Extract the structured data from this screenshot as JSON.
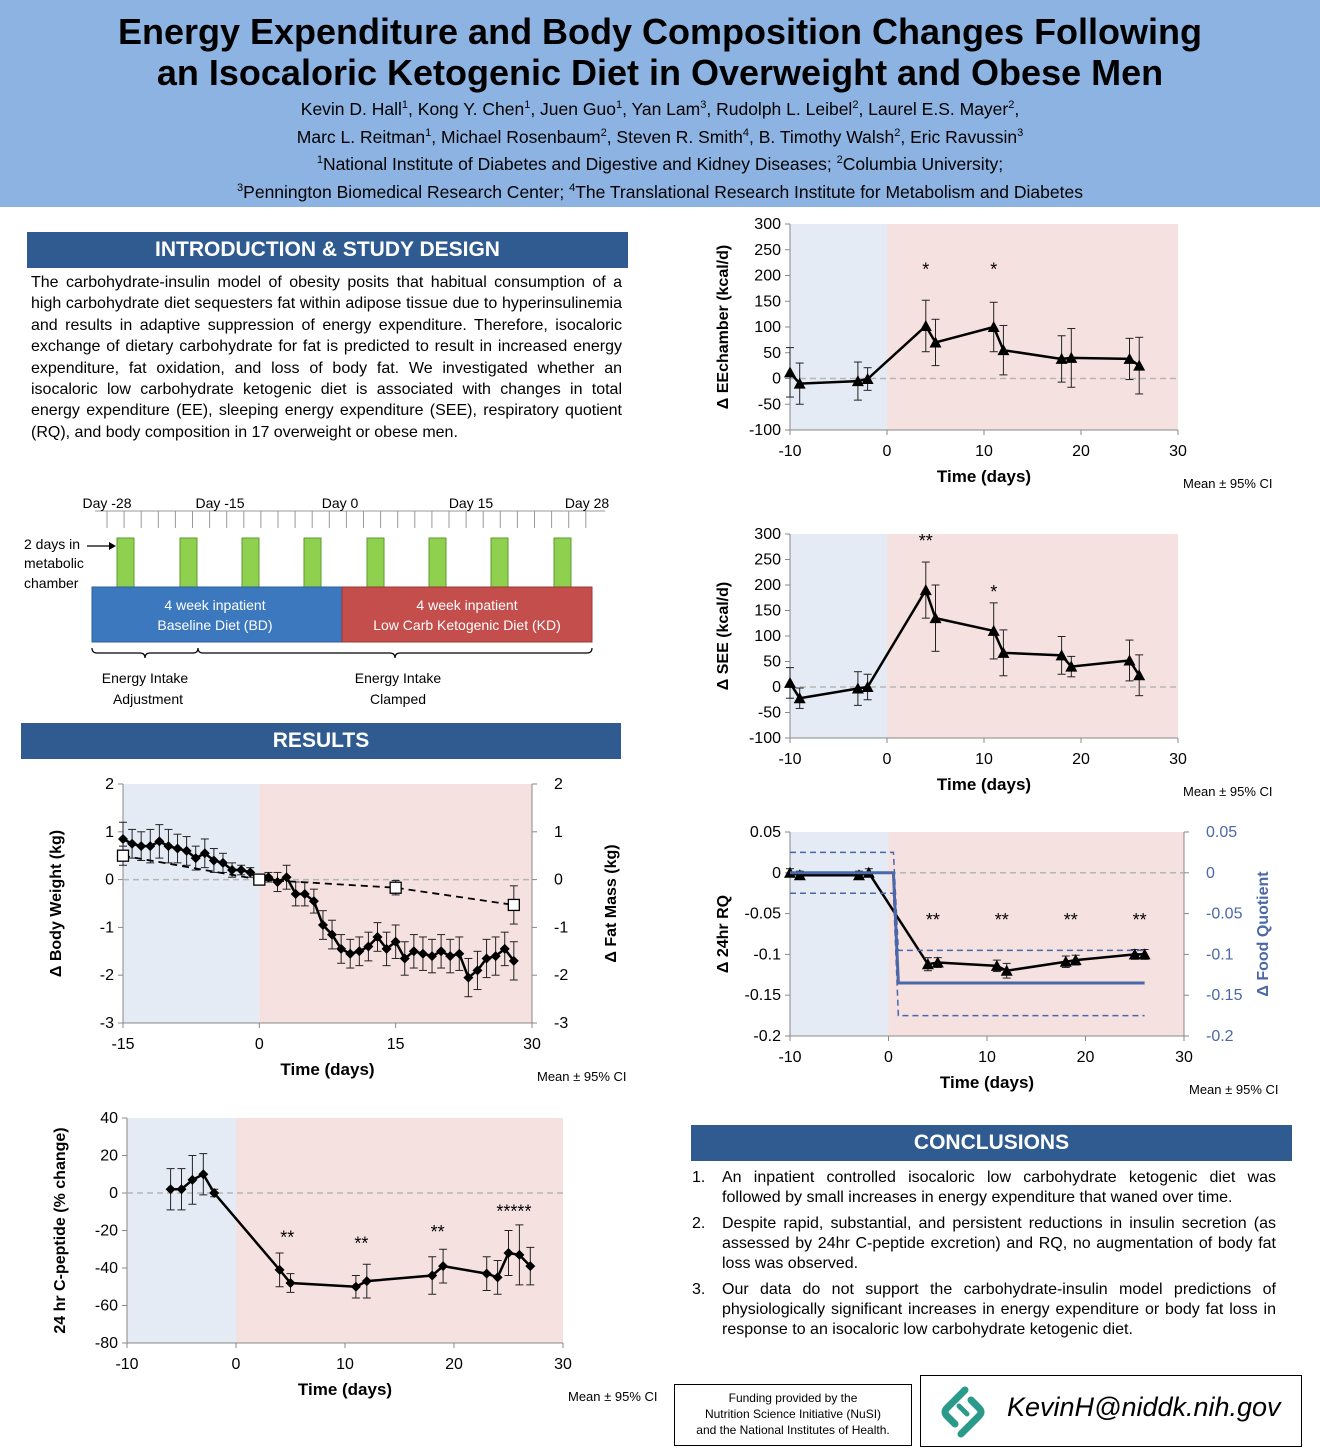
{
  "header": {
    "title_line1": "Energy Expenditure and Body Composition Changes Following",
    "title_line2": "an Isocaloric Ketogenic Diet in Overweight and Obese Men",
    "authors": [
      {
        "name": "Kevin D. Hall",
        "sup": "1"
      },
      {
        "name": "Kong Y. Chen",
        "sup": "1"
      },
      {
        "name": "Juen Guo",
        "sup": "1"
      },
      {
        "name": "Yan Lam",
        "sup": "3"
      },
      {
        "name": "Rudolph L. Leibel",
        "sup": "2"
      },
      {
        "name": "Laurel E.S. Mayer",
        "sup": "2"
      },
      {
        "name": "Marc L. Reitman",
        "sup": "1"
      },
      {
        "name": "Michael Rosenbaum",
        "sup": "2"
      },
      {
        "name": "Steven R. Smith",
        "sup": "4"
      },
      {
        "name": "B. Timothy Walsh",
        "sup": "2"
      },
      {
        "name": "Eric Ravussin",
        "sup": "3"
      }
    ],
    "affiliations": [
      {
        "sup": "1",
        "name": "National Institute of Diabetes and Digestive and Kidney Diseases;"
      },
      {
        "sup": "2",
        "name": "Columbia University;"
      },
      {
        "sup": "3",
        "name": "Pennington Biomedical Research Center;"
      },
      {
        "sup": "4",
        "name": "The Translational Research Institute for Metabolism and Diabetes"
      }
    ]
  },
  "intro": {
    "heading": "INTRODUCTION & STUDY DESIGN",
    "text": "The carbohydrate-insulin model of obesity posits that habitual consumption of a high carbohydrate diet sequesters fat within adipose tissue due to hyperinsulinemia and results in adaptive suppression of energy expenditure. Therefore, isocaloric exchange of dietary carbohydrate for fat is predicted to result in increased energy expenditure, fat oxidation, and loss of body fat. We investigated whether an isocaloric low carbohydrate ketogenic diet is associated with changes in total energy expenditure (EE), sleeping energy expenditure (SEE), respiratory quotient (RQ), and body composition in 17 overweight or obese men."
  },
  "design": {
    "day_labels": [
      "Day -28",
      "Day -15",
      "Day 0",
      "Day 15",
      "Day 28"
    ],
    "chamber_note": [
      "2 days in",
      "metabolic",
      "chamber"
    ],
    "phase1": [
      "4 week inpatient",
      "Baseline Diet (BD)"
    ],
    "phase2": [
      "4 week inpatient",
      "Low Carb Ketogenic Diet (KD)"
    ],
    "bracket1": [
      "Energy Intake",
      "Adjustment"
    ],
    "bracket2": [
      "Energy Intake",
      "Clamped"
    ]
  },
  "results_heading": "RESULTS",
  "conclusions": {
    "heading": "CONCLUSIONS",
    "items": [
      {
        "num": "1.",
        "text": "An inpatient controlled isocaloric low carbohydrate ketogenic diet  was followed by small increases in energy expenditure that waned over time."
      },
      {
        "num": "2.",
        "text": "Despite rapid, substantial, and persistent reductions in insulin secretion (as assessed by 24hr C-peptide excretion) and RQ, no augmentation of body fat loss was observed."
      },
      {
        "num": "3.",
        "text": "Our data do not support the carbohydrate-insulin model predictions of physiologically significant increases in energy expenditure or body fat loss in response to an isocaloric low carbohydrate ketogenic diet."
      }
    ]
  },
  "funding": [
    "Funding provided by  the",
    "Nutrition Science Initiative (NuSI)",
    "and  the National Institutes of Health."
  ],
  "contact_email": "KevinH@niddk.nih.gov",
  "colors": {
    "header_bg": "#8db3e2",
    "section_bar": "#2f5b91",
    "baseline_shade": "#e5ebf5",
    "keto_shade": "#f6e1e1",
    "baseline_box": "#3b78be",
    "keto_box": "#c34e4c",
    "chamber_green": "#8fd14f",
    "food_quotient": "#4a67a8"
  },
  "chart_data": [
    {
      "id": "ee",
      "type": "line",
      "xlabel": "Time (days)",
      "ylabel": "Δ EEchamber (kcal/d)",
      "xlim": [
        -10,
        30
      ],
      "ylim": [
        -100,
        300
      ],
      "xticks": [
        -10,
        0,
        10,
        20,
        30
      ],
      "yticks": [
        -100,
        -50,
        0,
        50,
        100,
        150,
        200,
        250,
        300
      ],
      "note": "Mean ± 95% CI",
      "series": [
        {
          "name": "EE",
          "marker": "triangle",
          "points": [
            [
              -10,
              12
            ],
            [
              -9,
              -10
            ],
            [
              -3,
              -5
            ],
            [
              -2,
              -1
            ],
            [
              4,
              102
            ],
            [
              5,
              70
            ],
            [
              11,
              100
            ],
            [
              12,
              55
            ],
            [
              18,
              38
            ],
            [
              19,
              40
            ],
            [
              25,
              38
            ],
            [
              26,
              25
            ]
          ],
          "err": [
            48,
            40,
            37,
            22,
            50,
            45,
            48,
            48,
            45,
            57,
            40,
            55
          ]
        }
      ],
      "annotations": [
        {
          "x": 4,
          "y": 200,
          "text": "*"
        },
        {
          "x": 11,
          "y": 200,
          "text": "*"
        }
      ]
    },
    {
      "id": "see",
      "type": "line",
      "xlabel": "Time (days)",
      "ylabel": "Δ SEE  (kcal/d)",
      "xlim": [
        -10,
        30
      ],
      "ylim": [
        -100,
        300
      ],
      "xticks": [
        -10,
        0,
        10,
        20,
        30
      ],
      "yticks": [
        -100,
        -50,
        0,
        50,
        100,
        150,
        200,
        250,
        300
      ],
      "note": "Mean ± 95% CI",
      "series": [
        {
          "name": "SEE",
          "marker": "triangle",
          "points": [
            [
              -10,
              8
            ],
            [
              -9,
              -22
            ],
            [
              -3,
              -3
            ],
            [
              -2,
              0
            ],
            [
              4,
              190
            ],
            [
              5,
              135
            ],
            [
              11,
              110
            ],
            [
              12,
              67
            ],
            [
              18,
              62
            ],
            [
              19,
              40
            ],
            [
              25,
              52
            ],
            [
              26,
              23
            ]
          ],
          "err": [
            30,
            20,
            33,
            25,
            55,
            65,
            55,
            45,
            37,
            20,
            40,
            40
          ]
        }
      ],
      "annotations": [
        {
          "x": 4,
          "y": 275,
          "text": "**"
        },
        {
          "x": 11,
          "y": 175,
          "text": "*"
        }
      ]
    },
    {
      "id": "rq",
      "type": "line",
      "xlabel": "Time (days)",
      "ylabel": "Δ 24hr RQ",
      "ylabel_right": "Δ Food Quotient",
      "xlim": [
        -10,
        30
      ],
      "ylim": [
        -0.2,
        0.05
      ],
      "xticks": [
        -10,
        0,
        10,
        20,
        30
      ],
      "yticks": [
        -0.2,
        -0.15,
        -0.1,
        -0.05,
        0,
        0.05
      ],
      "note": "Mean ± 95% CI",
      "series": [
        {
          "name": "24hr RQ",
          "marker": "triangle",
          "points": [
            [
              -10,
              0
            ],
            [
              -9,
              -0.003
            ],
            [
              -3,
              -0.003
            ],
            [
              -2,
              0
            ],
            [
              4,
              -0.112
            ],
            [
              5,
              -0.11
            ],
            [
              11,
              -0.114
            ],
            [
              12,
              -0.12
            ],
            [
              18,
              -0.109
            ],
            [
              19,
              -0.107
            ],
            [
              25,
              -0.1
            ],
            [
              26,
              -0.1
            ]
          ],
          "err": [
            0.005,
            0.005,
            0.005,
            0.005,
            0.008,
            0.006,
            0.007,
            0.009,
            0.007,
            0.006,
            0.006,
            0.006
          ]
        },
        {
          "name": "Food Quotient",
          "marker": "none",
          "color": "#4a67a8",
          "points": [
            [
              -10,
              0
            ],
            [
              0.5,
              0
            ],
            [
              1,
              -0.135
            ],
            [
              26,
              -0.135
            ]
          ],
          "upper": [
            [
              -10,
              0.025
            ],
            [
              0.5,
              0.025
            ],
            [
              1,
              -0.095
            ],
            [
              26,
              -0.095
            ]
          ],
          "lower": [
            [
              -10,
              -0.025
            ],
            [
              0.5,
              -0.025
            ],
            [
              1,
              -0.175
            ],
            [
              26,
              -0.175
            ]
          ]
        }
      ],
      "annotations": [
        {
          "x": 4.5,
          "y": -0.065,
          "text": "**"
        },
        {
          "x": 11.5,
          "y": -0.065,
          "text": "**"
        },
        {
          "x": 18.5,
          "y": -0.065,
          "text": "**"
        },
        {
          "x": 25.5,
          "y": -0.065,
          "text": "**"
        }
      ]
    },
    {
      "id": "weight",
      "type": "line",
      "xlabel": "Time (days)",
      "ylabel": "Δ Body Weight (kg)",
      "ylabel_right": "Δ Fat Mass (kg)",
      "xlim": [
        -15,
        30
      ],
      "ylim": [
        -3,
        2
      ],
      "xticks": [
        -15,
        0,
        15,
        30
      ],
      "yticks": [
        -3,
        -2,
        -1,
        0,
        1,
        2
      ],
      "note": "Mean ± 95% CI",
      "series": [
        {
          "name": "Body Weight",
          "marker": "diamond",
          "points": [
            [
              -15,
              0.85
            ],
            [
              -14,
              0.75
            ],
            [
              -13,
              0.7
            ],
            [
              -12,
              0.7
            ],
            [
              -11,
              0.8
            ],
            [
              -10,
              0.7
            ],
            [
              -9,
              0.65
            ],
            [
              -8,
              0.6
            ],
            [
              -7,
              0.45
            ],
            [
              -6,
              0.55
            ],
            [
              -5,
              0.4
            ],
            [
              -4,
              0.35
            ],
            [
              -3,
              0.2
            ],
            [
              -2,
              0.2
            ],
            [
              -1,
              0.15
            ],
            [
              0,
              0.0
            ],
            [
              1,
              0.05
            ],
            [
              2,
              -0.05
            ],
            [
              3,
              0.05
            ],
            [
              4,
              -0.3
            ],
            [
              5,
              -0.3
            ],
            [
              6,
              -0.45
            ],
            [
              7,
              -0.95
            ],
            [
              8,
              -1.15
            ],
            [
              9,
              -1.45
            ],
            [
              10,
              -1.55
            ],
            [
              11,
              -1.5
            ],
            [
              12,
              -1.4
            ],
            [
              13,
              -1.2
            ],
            [
              14,
              -1.45
            ],
            [
              15,
              -1.3
            ],
            [
              16,
              -1.65
            ],
            [
              17,
              -1.5
            ],
            [
              18,
              -1.55
            ],
            [
              19,
              -1.6
            ],
            [
              20,
              -1.5
            ],
            [
              21,
              -1.6
            ],
            [
              22,
              -1.55
            ],
            [
              23,
              -2.05
            ],
            [
              24,
              -1.9
            ],
            [
              25,
              -1.65
            ],
            [
              26,
              -1.6
            ],
            [
              27,
              -1.45
            ],
            [
              28,
              -1.7
            ]
          ],
          "err": [
            0.35,
            0.3,
            0.3,
            0.35,
            0.35,
            0.35,
            0.3,
            0.3,
            0.25,
            0.3,
            0.25,
            0.2,
            0.15,
            0.1,
            0.1,
            0.05,
            0.1,
            0.2,
            0.25,
            0.25,
            0.25,
            0.25,
            0.3,
            0.3,
            0.3,
            0.3,
            0.3,
            0.3,
            0.3,
            0.35,
            0.35,
            0.35,
            0.35,
            0.35,
            0.35,
            0.35,
            0.35,
            0.35,
            0.4,
            0.4,
            0.4,
            0.4,
            0.35,
            0.4
          ]
        },
        {
          "name": "Fat Mass",
          "marker": "open-square",
          "dashed": true,
          "points": [
            [
              -15,
              0.5
            ],
            [
              0,
              0.0
            ],
            [
              15,
              -0.17
            ],
            [
              28,
              -0.53
            ]
          ],
          "err": [
            0.2,
            0.05,
            0.15,
            0.4
          ]
        }
      ]
    },
    {
      "id": "cpeptide",
      "type": "line",
      "xlabel": "Time (days)",
      "ylabel": "24 hr C-peptide (% change)",
      "xlim": [
        -10,
        30
      ],
      "ylim": [
        -80,
        40
      ],
      "xticks": [
        -10,
        0,
        10,
        20,
        30
      ],
      "yticks": [
        -80,
        -60,
        -40,
        -20,
        0,
        20,
        40
      ],
      "note": "Mean ± 95% CI",
      "series": [
        {
          "name": "C-peptide",
          "marker": "diamond",
          "points": [
            [
              -6,
              2
            ],
            [
              -5,
              2
            ],
            [
              -4,
              7
            ],
            [
              -3,
              10
            ],
            [
              -2,
              0
            ],
            [
              4,
              -41
            ],
            [
              5,
              -48
            ],
            [
              11,
              -50
            ],
            [
              12,
              -47
            ],
            [
              18,
              -44
            ],
            [
              19,
              -39
            ],
            [
              23,
              -43
            ],
            [
              24,
              -45
            ],
            [
              25,
              -32
            ],
            [
              26,
              -33
            ],
            [
              27,
              -39
            ]
          ],
          "err": [
            11,
            11,
            13,
            11,
            2,
            9,
            5,
            6,
            9,
            10,
            9,
            9,
            9,
            12,
            16,
            10
          ]
        }
      ],
      "annotations": [
        {
          "x": 4.7,
          "y": -27,
          "text": "**"
        },
        {
          "x": 11.5,
          "y": -30,
          "text": "**"
        },
        {
          "x": 18.5,
          "y": -24,
          "text": "**"
        },
        {
          "x": 25.5,
          "y": -13,
          "text": "*****"
        }
      ]
    }
  ]
}
